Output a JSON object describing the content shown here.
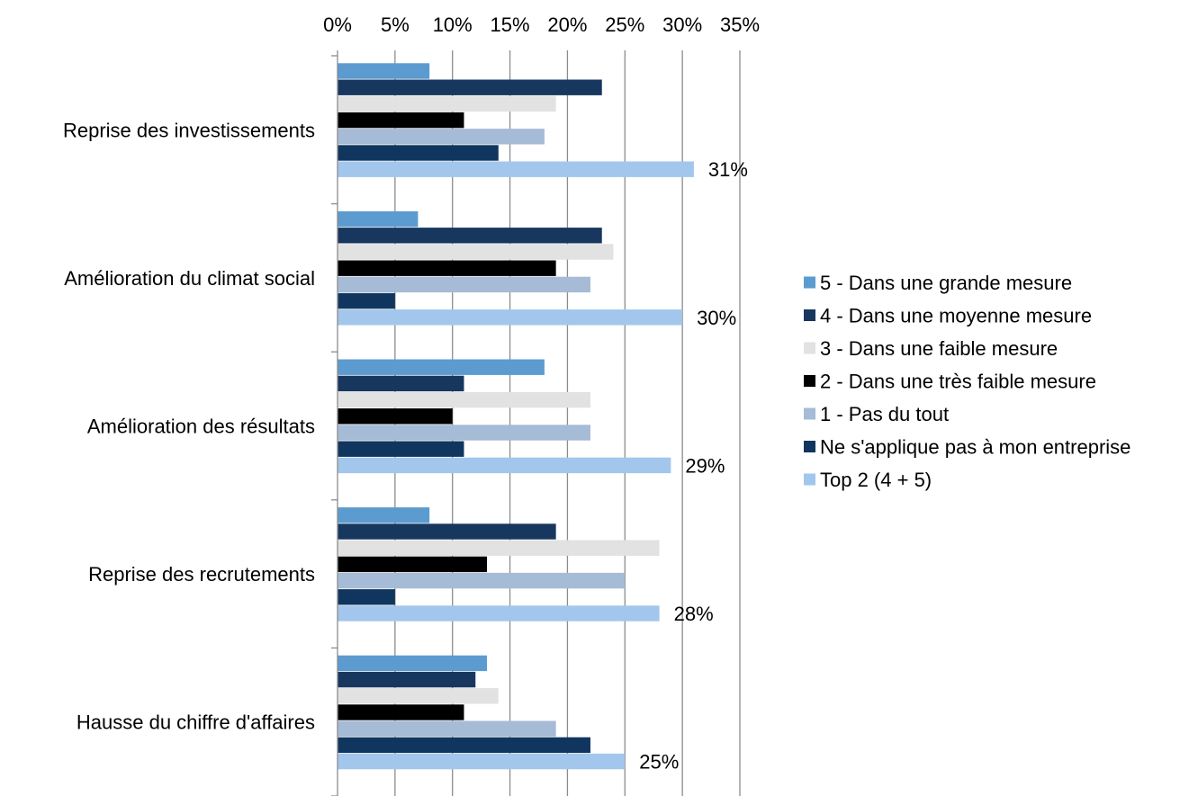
{
  "chart_data": {
    "type": "bar",
    "orientation": "horizontal",
    "categories": [
      "Reprise des investissements",
      "Amélioration du climat social",
      "Amélioration des résultats",
      "Reprise des recrutements",
      "Hausse du chiffre d'affaires"
    ],
    "series": [
      {
        "name": "5 - Dans une grande mesure",
        "color": "#5b9bd0",
        "values": [
          8,
          7,
          18,
          8,
          13
        ]
      },
      {
        "name": "4 - Dans une moyenne mesure",
        "color": "#17375e",
        "values": [
          23,
          23,
          11,
          19,
          12
        ]
      },
      {
        "name": "3 - Dans une faible mesure",
        "color": "#e2e2e2",
        "values": [
          19,
          24,
          22,
          28,
          14
        ]
      },
      {
        "name": "2 - Dans une très faible mesure",
        "color": "#000000",
        "values": [
          11,
          19,
          10,
          13,
          11
        ]
      },
      {
        "name": "1 - Pas du tout",
        "color": "#a5bbd6",
        "values": [
          18,
          22,
          22,
          25,
          19
        ]
      },
      {
        "name": "Ne s'applique pas à mon entreprise",
        "color": "#10365f",
        "values": [
          14,
          5,
          11,
          5,
          22
        ]
      },
      {
        "name": "Top 2 (4 + 5)",
        "color": "#a3c6ec",
        "values": [
          31,
          30,
          29,
          28,
          25
        ]
      }
    ],
    "data_labels": {
      "series": "Top 2 (4 + 5)",
      "labels": [
        "31%",
        "30%",
        "29%",
        "28%",
        "25%"
      ]
    },
    "x_ticks": [
      "0%",
      "5%",
      "10%",
      "15%",
      "20%",
      "25%",
      "30%",
      "35%"
    ],
    "xlim": [
      0,
      35
    ],
    "x_axis_position": "top",
    "grid": true,
    "legend_position": "right",
    "title": "",
    "xlabel": "",
    "ylabel": ""
  }
}
